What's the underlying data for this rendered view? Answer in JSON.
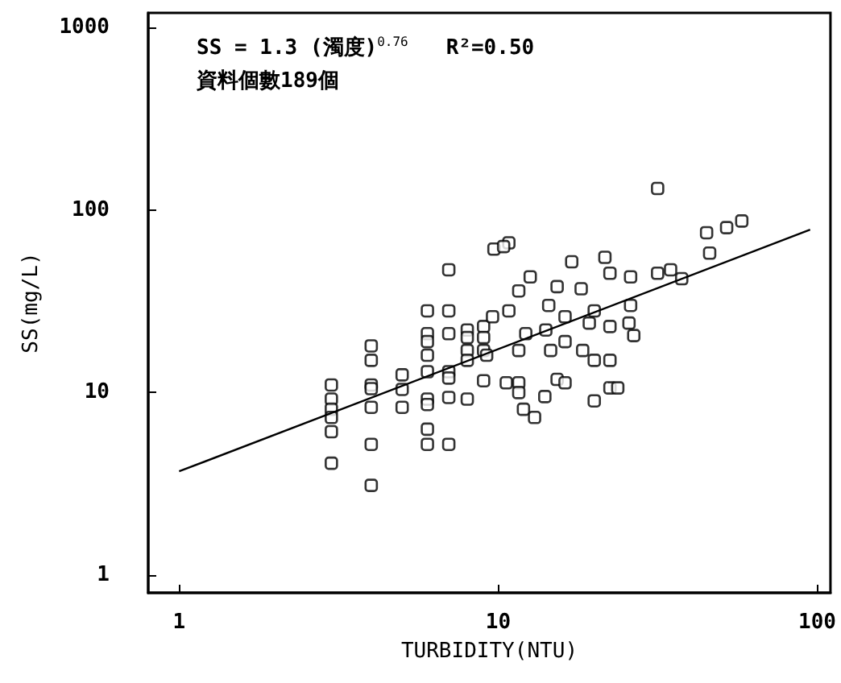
{
  "chart_data": {
    "type": "scatter",
    "xlabel": "TURBIDITY(NTU)",
    "ylabel": "SS(mg/L)",
    "log": "xy",
    "xlim": [
      0.8,
      110
    ],
    "ylim": [
      0.8,
      1200
    ],
    "xticks": [
      1,
      10,
      100
    ],
    "yticks": [
      1,
      10,
      100,
      1000
    ],
    "grid": false,
    "annotations": [
      "SS = 1.3 (濁度)$^{0.76}$   R²=0.50",
      "資料個數189個"
    ],
    "series": [
      {
        "color": "#000000",
        "marker": "square",
        "x": [
          3,
          3,
          3,
          3,
          3,
          3,
          4,
          4,
          4,
          4,
          4,
          4,
          4,
          5,
          5,
          5,
          6,
          6,
          6,
          6,
          6,
          6,
          6,
          6,
          6,
          7,
          7,
          7,
          7,
          7,
          7,
          7,
          8,
          8,
          8,
          8,
          8,
          9,
          9,
          9,
          9,
          9.7,
          9.6,
          10.8,
          9.2,
          10.6,
          11.6,
          11.6,
          12.2,
          12.6,
          14.1,
          14.4,
          14.6,
          15.3,
          15.3,
          16.2,
          16.2,
          16.2,
          17,
          18.2,
          18.4,
          19.3,
          20,
          20,
          20,
          21.6,
          22.4,
          22.4,
          22.4,
          22.4,
          23.7,
          25.7,
          26,
          26,
          26.6,
          31.6,
          31.6,
          34.7,
          37.6,
          45,
          46,
          52,
          58,
          11.6,
          11.6,
          10.8,
          10.4,
          12,
          13,
          14
        ],
        "values": [
          11,
          9.2,
          8.1,
          7.3,
          6.1,
          4.1,
          18,
          15,
          11,
          10.5,
          8.3,
          5.2,
          3.1,
          12.5,
          10.4,
          8.3,
          28,
          21,
          19,
          16,
          13,
          9.2,
          8.6,
          6.3,
          5.2,
          47,
          28,
          21,
          13,
          12,
          9.4,
          5.2,
          22,
          20,
          17,
          15,
          9.2,
          23,
          20,
          17,
          11.6,
          61,
          26,
          28,
          16,
          11.3,
          36,
          17,
          21,
          43,
          22,
          30,
          17,
          38,
          11.8,
          26,
          19,
          11.3,
          52,
          37,
          17,
          24,
          28,
          15,
          9,
          55,
          45,
          23,
          15,
          10.6,
          10.6,
          24,
          43,
          30,
          20.5,
          45,
          131,
          47,
          42,
          75,
          58,
          80,
          87,
          11.3,
          10,
          66,
          63,
          8.1,
          7.3,
          9.5
        ]
      },
      {
        "type": "line",
        "color": "#000000",
        "x": [
          1,
          95
        ],
        "values": [
          3.7,
          78
        ]
      }
    ]
  }
}
